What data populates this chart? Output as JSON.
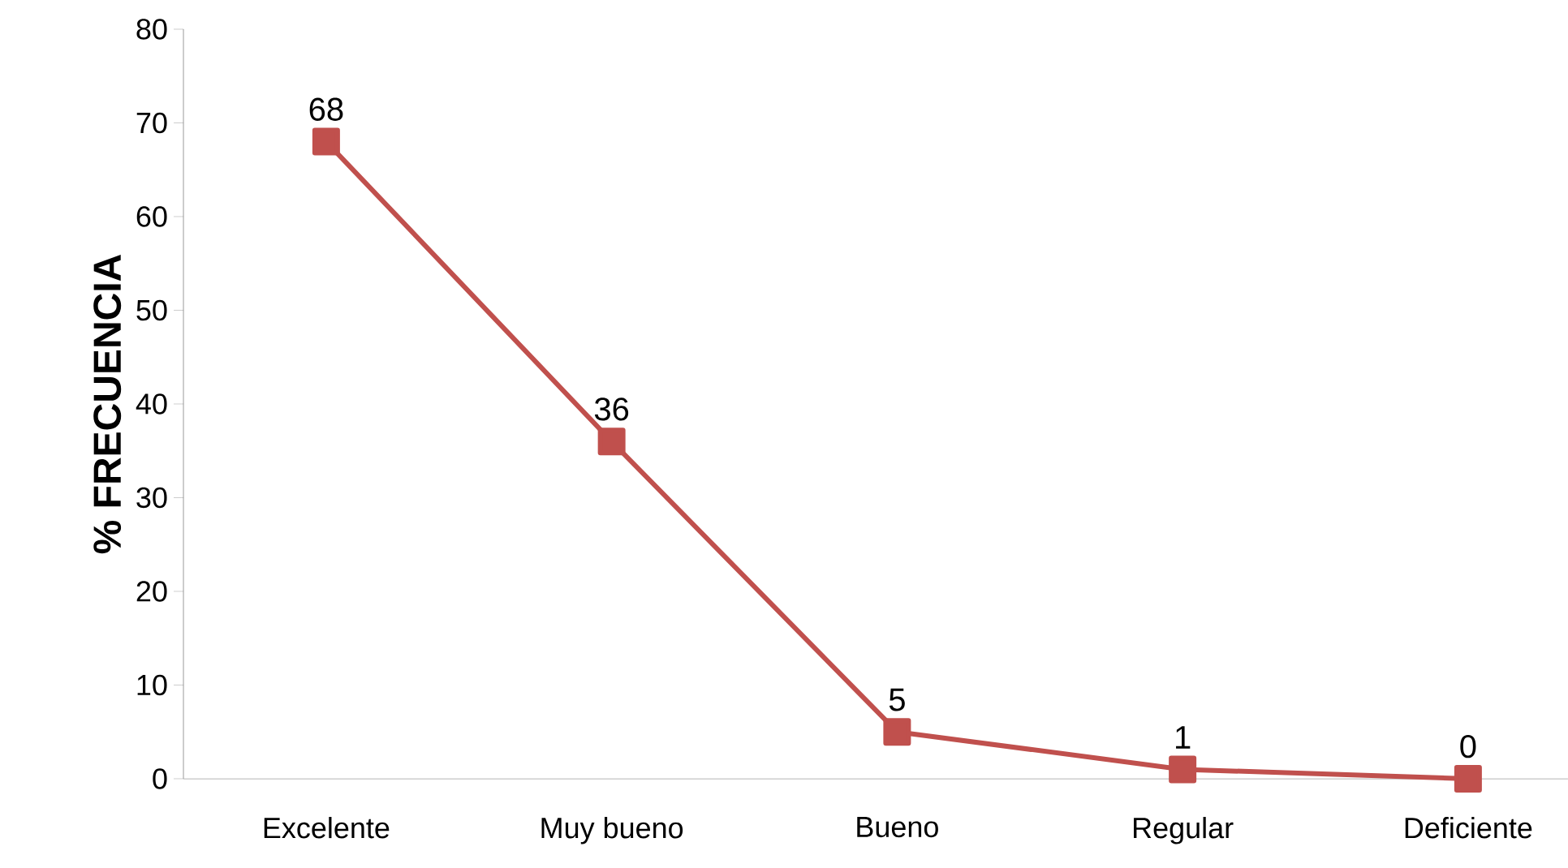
{
  "chart_data": {
    "type": "line",
    "ylabel": "% FRECUENCIA",
    "categories": [
      "Excelente",
      "Muy bueno",
      "Bueno",
      "Regular",
      "Deficiente"
    ],
    "series": [
      {
        "color": "#c0504d",
        "values": [
          68,
          36,
          5,
          1,
          0
        ]
      }
    ],
    "ylim": [
      0,
      80
    ],
    "yticks": [
      0,
      10,
      20,
      30,
      40,
      50,
      60,
      70,
      80
    ],
    "marker": "square",
    "data_labels": true,
    "grid": false
  }
}
